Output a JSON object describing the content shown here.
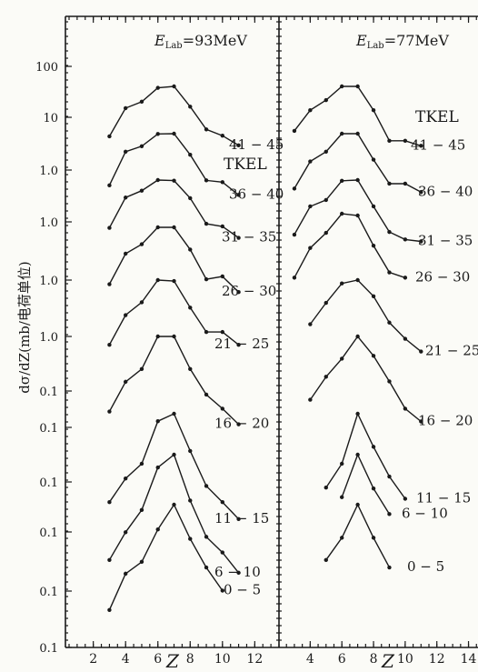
{
  "chart_data": [
    {
      "type": "line",
      "title": "E_Lab=93MeV",
      "title_main": "E",
      "title_sub": "Lab",
      "title_rest": "=93MeV",
      "xlabel": "Z",
      "ylabel": "dσ/dZ(mb/电荷单位)",
      "x_ticks": [
        "2",
        "4",
        "6",
        "8",
        "10",
        "12"
      ],
      "xlim": [
        0.5,
        13.5
      ],
      "y_tick_labels": [
        "100",
        "10",
        "1.0",
        "1.0",
        "1.0",
        "1.0",
        "0.1",
        "0.1",
        "0.1",
        "0.1",
        "0.1",
        "0.1"
      ],
      "y_scale": "log, vertically offset per series",
      "legend_title": "TKEL",
      "series": [
        {
          "name": "41-45",
          "label": "41 − 45",
          "x": [
            3,
            4,
            5,
            6,
            7,
            8,
            9,
            10,
            11
          ],
          "y": [
            2.6,
            12,
            17,
            36,
            39,
            13,
            3.8,
            2.7,
            1.6
          ]
        },
        {
          "name": "36-40",
          "label": "36 − 40",
          "x": [
            3,
            4,
            5,
            6,
            7,
            8,
            9,
            10,
            11
          ],
          "y": [
            0.42,
            2.6,
            3.5,
            6.8,
            6.9,
            2.2,
            0.55,
            0.5,
            0.25
          ]
        },
        {
          "name": "31-35",
          "label": "31 − 35",
          "x": [
            3,
            4,
            5,
            6,
            7,
            8,
            9,
            10,
            11
          ],
          "y": [
            0.12,
            0.62,
            0.9,
            1.6,
            1.55,
            0.6,
            0.15,
            0.13,
            0.07
          ]
        },
        {
          "name": "26-30",
          "label": "26 − 30",
          "x": [
            3,
            4,
            5,
            6,
            7,
            8,
            9,
            10,
            11
          ],
          "y": [
            0.023,
            0.12,
            0.2,
            0.5,
            0.5,
            0.15,
            0.03,
            0.035,
            0.015
          ]
        },
        {
          "name": "21-25",
          "label": "21 − 25",
          "x": [
            3,
            4,
            5,
            6,
            7,
            8,
            9,
            10,
            11
          ],
          "y": [
            0.006,
            0.03,
            0.06,
            0.2,
            0.19,
            0.045,
            0.012,
            0.012,
            0.006
          ]
        },
        {
          "name": "16-20",
          "label": "16 − 20",
          "x": [
            3,
            4,
            5,
            6,
            7,
            8,
            9,
            10,
            11
          ],
          "y": [
            0.0012,
            0.006,
            0.012,
            0.07,
            0.07,
            0.012,
            0.003,
            0.0014,
            0.0006
          ]
        },
        {
          "name": "11-15",
          "label": "11 − 15",
          "x": [
            3,
            4,
            5,
            6,
            7,
            8,
            9,
            10,
            11
          ],
          "y": [
            0.00025,
            0.0009,
            0.002,
            0.02,
            0.03,
            0.004,
            0.0006,
            0.00025,
            0.0001
          ]
        },
        {
          "name": "6-10",
          "label": "6 − 10",
          "x": [
            3,
            4,
            5,
            6,
            7,
            8,
            9,
            10,
            11
          ],
          "y": [
            2e-05,
            9e-05,
            0.0003,
            0.003,
            0.006,
            0.0005,
            7e-05,
            3e-05,
            1e-05
          ]
        },
        {
          "name": "0-5",
          "label": "0 − 5",
          "x": [
            3,
            4,
            5,
            6,
            7,
            8,
            9,
            10
          ],
          "y": [
            7e-07,
            5e-06,
            9.5e-06,
            5.5e-05,
            0.00021,
            3.3e-05,
            7e-06,
            2e-06
          ]
        }
      ]
    },
    {
      "type": "line",
      "title": "E_Lab=77MeV",
      "title_main": "E",
      "title_sub": "Lab",
      "title_rest": "=77MeV",
      "xlabel": "Z",
      "x_ticks": [
        "4",
        "6",
        "8",
        "10",
        "12",
        "14"
      ],
      "xlim": [
        2.2,
        14.6
      ],
      "y_scale": "log, vertically offset per series",
      "legend_title": "TKEL",
      "series": [
        {
          "name": "41-45",
          "label": "41 − 45",
          "x": [
            3,
            4,
            5,
            6,
            7,
            8,
            9,
            10,
            11
          ],
          "y": [
            3.6,
            11,
            19,
            40,
            40,
            11,
            2.1,
            2.1,
            1.6
          ]
        },
        {
          "name": "36-40",
          "label": "36 − 40",
          "x": [
            3,
            4,
            5,
            6,
            7,
            8,
            9,
            10,
            11
          ],
          "y": [
            0.46,
            2,
            3.4,
            9,
            9,
            2.2,
            0.6,
            0.6,
            0.38
          ]
        },
        {
          "name": "31-35",
          "label": "31 − 35",
          "x": [
            3,
            4,
            5,
            6,
            7,
            8,
            9,
            10,
            11
          ],
          "y": [
            0.13,
            0.6,
            0.85,
            2.4,
            2.5,
            0.6,
            0.15,
            0.1,
            0.09
          ]
        },
        {
          "name": "26-30",
          "label": "26 − 30",
          "x": [
            3,
            4,
            5,
            6,
            7,
            8,
            9,
            10
          ],
          "y": [
            0.03,
            0.15,
            0.34,
            0.96,
            0.87,
            0.17,
            0.04,
            0.03
          ]
        },
        {
          "name": "21-25",
          "label": "21 − 25",
          "x": [
            4,
            5,
            6,
            7,
            8,
            9,
            10,
            11
          ],
          "y": [
            0.011,
            0.035,
            0.1,
            0.12,
            0.05,
            0.012,
            0.005,
            0.0025
          ]
        },
        {
          "name": "16-20",
          "label": "16 − 20",
          "x": [
            4,
            5,
            6,
            7,
            8,
            9,
            10,
            11
          ],
          "y": [
            0.0013,
            0.0045,
            0.012,
            0.04,
            0.014,
            0.0035,
            0.0008,
            0.0004
          ]
        },
        {
          "name": "11-15",
          "label": "11 − 15",
          "x": [
            5,
            6,
            7,
            8,
            9,
            10
          ],
          "y": [
            0.00055,
            0.002,
            0.03,
            0.005,
            0.001,
            0.0003
          ]
        },
        {
          "name": "6-10",
          "label": "6 − 10",
          "x": [
            6,
            7,
            8,
            9
          ],
          "y": [
            5e-05,
            0.0005,
            8e-05,
            2e-05
          ]
        },
        {
          "name": "0-5",
          "label": "0 − 5",
          "x": [
            5,
            6,
            7,
            8,
            9
          ],
          "y": [
            1.5e-06,
            5e-06,
            3e-05,
            5e-06,
            1e-06
          ]
        }
      ]
    }
  ]
}
